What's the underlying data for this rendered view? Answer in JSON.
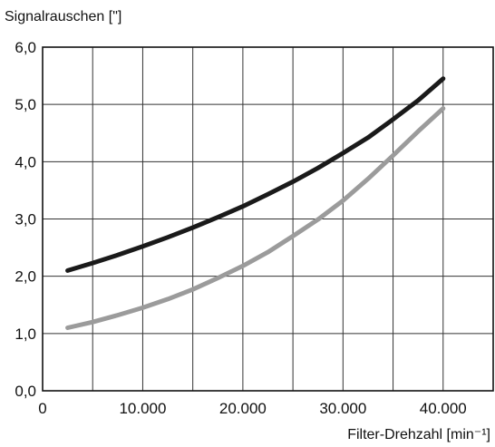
{
  "chart_data": {
    "type": "line",
    "title": "",
    "ylabel": "Signalrauschen [\"]",
    "xlabel": "Filter-Drehzahl [min⁻¹]",
    "xlim": [
      0,
      45000
    ],
    "ylim": [
      0,
      6
    ],
    "x_ticks": [
      0,
      10000,
      20000,
      30000,
      40000
    ],
    "x_tick_labels": [
      "0",
      "10.000",
      "20.000",
      "30.000",
      "40.000"
    ],
    "y_ticks": [
      0,
      1,
      2,
      3,
      4,
      5,
      6
    ],
    "y_tick_labels": [
      "0,0",
      "1,0",
      "2,0",
      "3,0",
      "4,0",
      "5,0",
      "6,0"
    ],
    "x_gridlines": [
      5000,
      10000,
      15000,
      20000,
      25000,
      30000,
      35000,
      40000
    ],
    "grid": true,
    "series": [
      {
        "color": "#1a1a1a",
        "x": [
          2500,
          5000,
          7500,
          10000,
          12500,
          15000,
          17500,
          20000,
          22500,
          25000,
          27500,
          30000,
          32500,
          35000,
          37500,
          40000
        ],
        "y": [
          2.1,
          2.23,
          2.37,
          2.52,
          2.68,
          2.85,
          3.03,
          3.22,
          3.43,
          3.65,
          3.89,
          4.15,
          4.42,
          4.74,
          5.07,
          5.45
        ]
      },
      {
        "color": "#9b9b9b",
        "x": [
          2500,
          5000,
          7500,
          10000,
          12500,
          15000,
          17500,
          20000,
          22500,
          25000,
          27500,
          30000,
          32500,
          35000,
          37500,
          40000
        ],
        "y": [
          1.1,
          1.2,
          1.32,
          1.45,
          1.6,
          1.77,
          1.97,
          2.18,
          2.42,
          2.7,
          2.99,
          3.32,
          3.7,
          4.11,
          4.53,
          4.93
        ]
      }
    ]
  }
}
